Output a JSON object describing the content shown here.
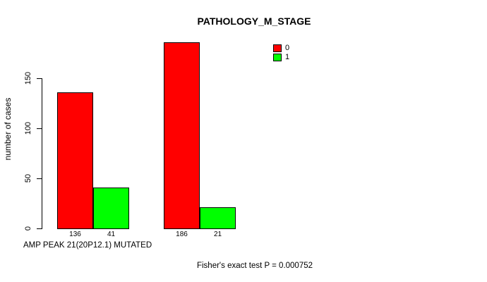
{
  "chart_data": {
    "type": "bar",
    "title": "PATHOLOGY_M_STAGE",
    "ylabel": "number of cases",
    "xlabel": "AMP PEAK 21(20P12.1) MUTATED",
    "footer": "Fisher's exact test P = 0.000752",
    "ylim": [
      0,
      190
    ],
    "yticks": [
      0,
      50,
      100,
      150
    ],
    "grid": false,
    "legend_position": "top-right",
    "series": [
      {
        "name": "0",
        "color": "#FF0000",
        "values": [
          136,
          186
        ]
      },
      {
        "name": "1",
        "color": "#00FF00",
        "values": [
          41,
          21
        ]
      }
    ],
    "bar_value_labels": [
      [
        "136",
        "41"
      ],
      [
        "186",
        "21"
      ]
    ],
    "legend": [
      {
        "label": "0",
        "color": "#FF0000"
      },
      {
        "label": "1",
        "color": "#00FF00"
      }
    ]
  }
}
